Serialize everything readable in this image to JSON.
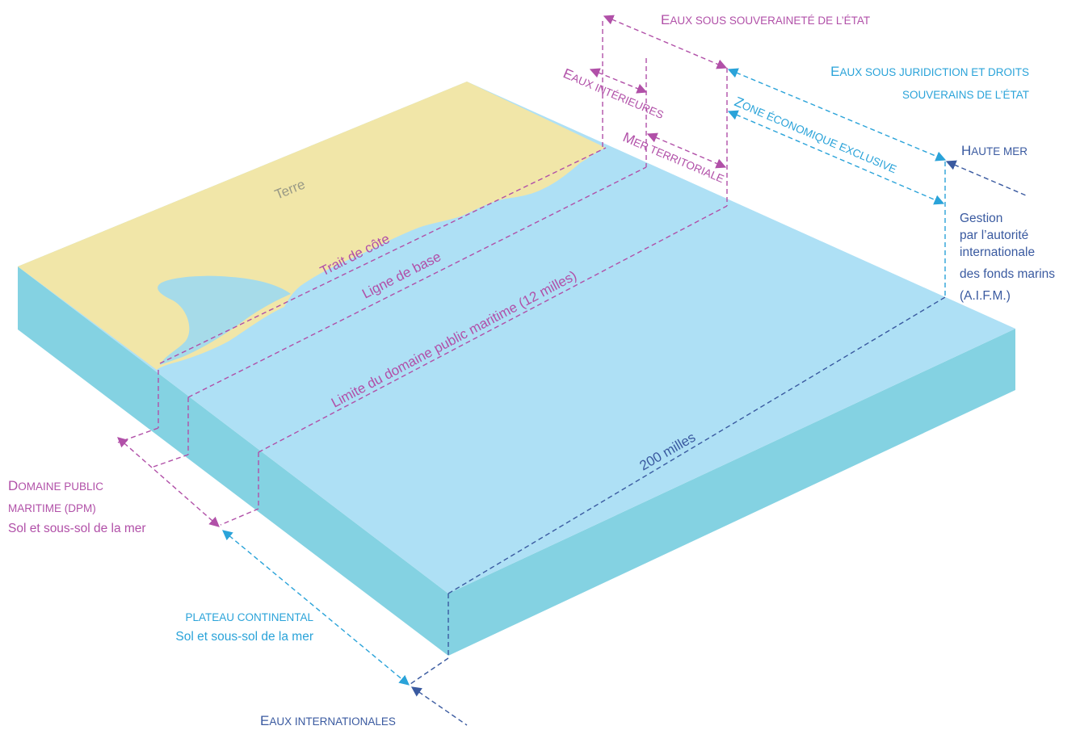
{
  "colors": {
    "land": "#f1e6a8",
    "sea_top": "#aee0f5",
    "sea_side": "#84d2e2",
    "purple": "#b150a8",
    "blue": "#2aa3d9",
    "navy": "#3a5aa0"
  },
  "labels": {
    "terre": "Terre",
    "trait_de_cote": "Trait de côte",
    "ligne_de_base": "Ligne de base",
    "limite_dpm": "Limite du domaine public maritime (12 milles)",
    "deux_cents": "200 milles",
    "eaux_souverainete": {
      "cap": "E",
      "rest": "AUX SOUS SOUVERAINETÉ DE L’ÉTAT"
    },
    "eaux_interieures": {
      "cap": "E",
      "rest": "AUX INTÉRIEURES"
    },
    "mer_territoriale": {
      "cap": "M",
      "rest": "ER TERRITORIALE"
    },
    "eaux_juridiction_1": {
      "cap": "E",
      "rest": "AUX SOUS JURIDICTION ET DROITS"
    },
    "eaux_juridiction_2": "SOUVERAINS DE L’ÉTAT",
    "zee": {
      "cap": "Z",
      "rest": "ONE ÉCONOMIQUE EXCLUSIVE"
    },
    "haute_mer": {
      "cap": "H",
      "rest": "AUTE MER"
    },
    "gestion_lines": [
      "Gestion",
      "par l’autorité",
      "internationale",
      "des fonds marins",
      "(A.I.F.M.)"
    ],
    "dpm_title_1": {
      "cap": "D",
      "rest": "OMAINE PUBLIC"
    },
    "dpm_title_2": "MARITIME (DPM)",
    "dpm_sub": "Sol et sous-sol de la mer",
    "plateau_title": "PLATEAU CONTINENTAL",
    "plateau_sub": "Sol et sous-sol de la mer",
    "eaux_internationales": {
      "cap": "E",
      "rest": "AUX INTERNATIONALES"
    }
  }
}
